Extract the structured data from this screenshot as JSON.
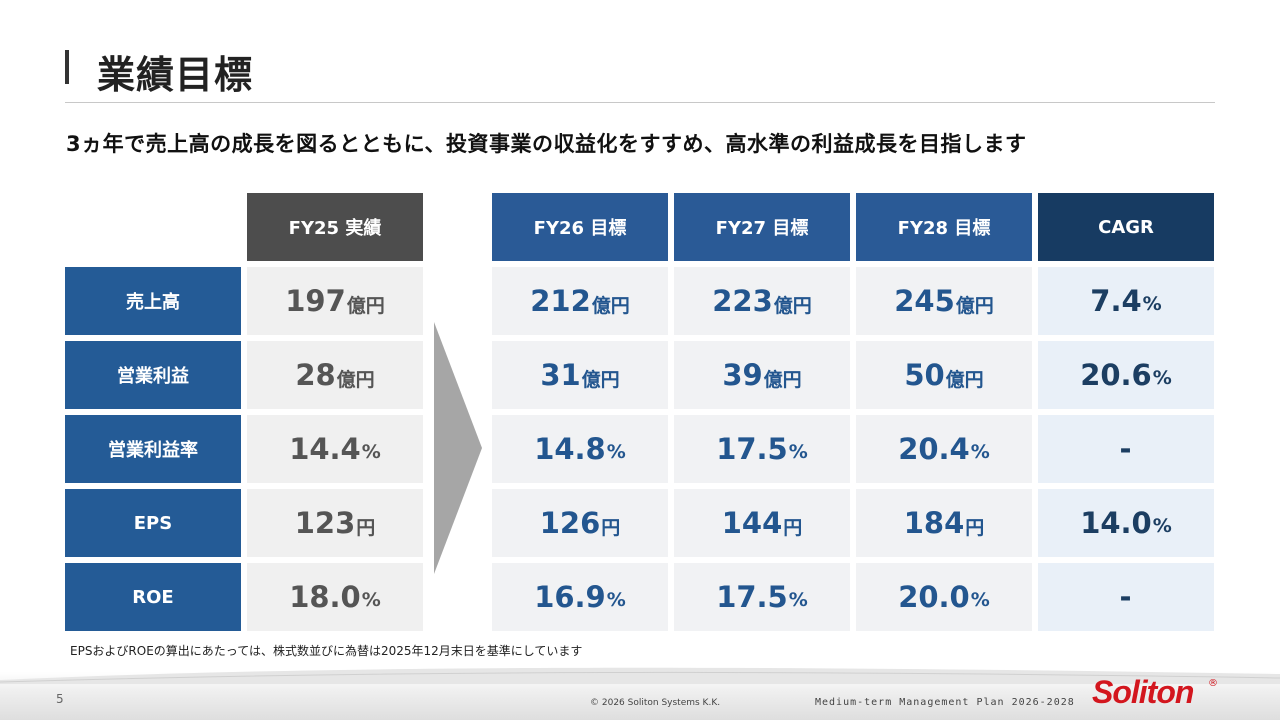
{
  "title": "業績目標",
  "subtitle": "3ヵ年で売上高の成長を図るとともに、投資事業の収益化をすすめ、高水準の利益成長を目指します",
  "columns": {
    "fy25": "FY25 実績",
    "fy26": "FY26 目標",
    "fy27": "FY27 目標",
    "fy28": "FY28 目標",
    "cagr": "CAGR"
  },
  "rows": [
    {
      "label": "売上高",
      "fy25": {
        "num": "197",
        "unit": "億円"
      },
      "fy26": {
        "num": "212",
        "unit": "億円"
      },
      "fy27": {
        "num": "223",
        "unit": "億円"
      },
      "fy28": {
        "num": "245",
        "unit": "億円"
      },
      "cagr": {
        "num": "7.4",
        "unit": "%"
      }
    },
    {
      "label": "営業利益",
      "fy25": {
        "num": "28",
        "unit": "億円"
      },
      "fy26": {
        "num": "31",
        "unit": "億円"
      },
      "fy27": {
        "num": "39",
        "unit": "億円"
      },
      "fy28": {
        "num": "50",
        "unit": "億円"
      },
      "cagr": {
        "num": "20.6",
        "unit": "%"
      }
    },
    {
      "label": "営業利益率",
      "fy25": {
        "num": "14.4",
        "unit": "%"
      },
      "fy26": {
        "num": "14.8",
        "unit": "%"
      },
      "fy27": {
        "num": "17.5",
        "unit": "%"
      },
      "fy28": {
        "num": "20.4",
        "unit": "%"
      },
      "cagr": {
        "num": "-",
        "unit": ""
      }
    },
    {
      "label": "EPS",
      "fy25": {
        "num": "123",
        "unit": "円"
      },
      "fy26": {
        "num": "126",
        "unit": "円"
      },
      "fy27": {
        "num": "144",
        "unit": "円"
      },
      "fy28": {
        "num": "184",
        "unit": "円"
      },
      "cagr": {
        "num": "14.0",
        "unit": "%"
      }
    },
    {
      "label": "ROE",
      "fy25": {
        "num": "18.0",
        "unit": "%"
      },
      "fy26": {
        "num": "16.9",
        "unit": "%"
      },
      "fy27": {
        "num": "17.5",
        "unit": "%"
      },
      "fy28": {
        "num": "20.0",
        "unit": "%"
      },
      "cagr": {
        "num": "-",
        "unit": ""
      }
    }
  ],
  "note": "EPSおよびROEの算出にあたっては、株式数並びに為替は2025年12月末日を基準にしています",
  "footer": {
    "page": "5",
    "copyright": "© 2026 Soliton Systems K.K.",
    "plan": "Medium-term Management Plan 2026-2028",
    "logo": "Soliton",
    "logo_mark": "®"
  },
  "colors": {
    "label_blue": "#245b96",
    "header_blue": "#2a5a96",
    "header_navy": "#173b62",
    "header_gray": "#4d4d4d",
    "value_blue": "#23568f",
    "logo_red": "#d3161e"
  }
}
